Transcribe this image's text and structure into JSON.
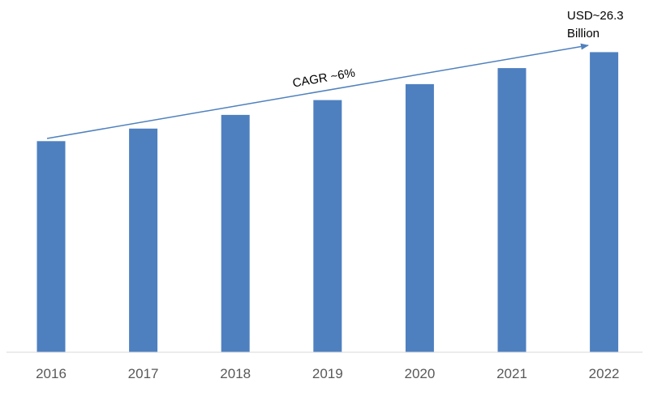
{
  "chart_data": {
    "type": "bar",
    "categories": [
      "2016",
      "2017",
      "2018",
      "2019",
      "2020",
      "2021",
      "2022"
    ],
    "values": [
      18.5,
      19.6,
      20.8,
      22.1,
      23.5,
      24.9,
      26.3
    ],
    "ylim": [
      0,
      28.6
    ],
    "grid": false,
    "annotations": {
      "cagr": "CAGR ~6%",
      "final_value_line1": "USD~26.3",
      "final_value_line2": "Billion"
    },
    "colors": {
      "bar": "#4e80c0",
      "arrow": "#4f81bd",
      "axis": "#d9d9d9",
      "tick_text": "#595959"
    }
  }
}
